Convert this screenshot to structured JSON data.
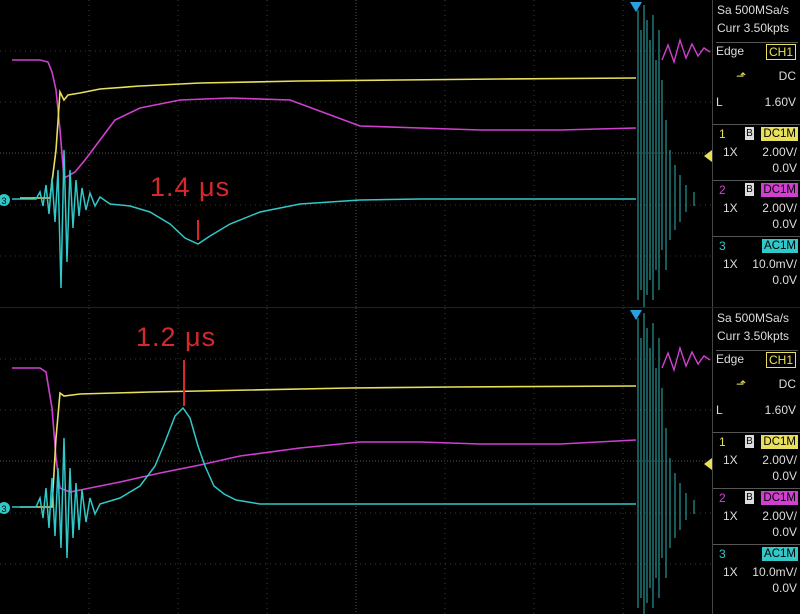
{
  "screens": [
    {
      "annotation": "1.4 μs",
      "acquisition": {
        "sample_rate": "Sa 500MSa/s",
        "memory": "Curr 3.50kpts"
      },
      "trigger": {
        "type": "Edge",
        "source": "CH1",
        "coupling": "DC",
        "level_label": "L",
        "level": "1.60V"
      },
      "channels": [
        {
          "num": "1",
          "bw": "B",
          "coupling": "DC1M",
          "probe": "1X",
          "vdiv": "2.00V/",
          "offset": "0.0V",
          "color": "#e8e05a"
        },
        {
          "num": "2",
          "bw": "B",
          "coupling": "DC1M",
          "probe": "1X",
          "vdiv": "2.00V/",
          "offset": "0.0V",
          "color": "#d040d0"
        },
        {
          "num": "3",
          "bw": "",
          "coupling": "AC1M",
          "probe": "1X",
          "vdiv": "10.0mV/",
          "offset": "0.0V",
          "color": "#30c8c8"
        }
      ]
    },
    {
      "annotation": "1.2 μs",
      "acquisition": {
        "sample_rate": "Sa 500MSa/s",
        "memory": "Curr 3.50kpts"
      },
      "trigger": {
        "type": "Edge",
        "source": "CH1",
        "coupling": "DC",
        "level_label": "L",
        "level": "1.60V"
      },
      "channels": [
        {
          "num": "1",
          "bw": "B",
          "coupling": "DC1M",
          "probe": "1X",
          "vdiv": "2.00V/",
          "offset": "0.0V",
          "color": "#e8e05a"
        },
        {
          "num": "2",
          "bw": "B",
          "coupling": "DC1M",
          "probe": "1X",
          "vdiv": "2.00V/",
          "offset": "0.0V",
          "color": "#d040d0"
        },
        {
          "num": "3",
          "bw": "",
          "coupling": "AC1M",
          "probe": "1X",
          "vdiv": "10.0mV/",
          "offset": "0.0V",
          "color": "#30c8c8"
        }
      ]
    }
  ],
  "colors": {
    "ch1": "#e8e05a",
    "ch2": "#d040d0",
    "ch3": "#30c8c8",
    "annotation": "#d8282a",
    "trigger_marker": "#2aa0e0"
  }
}
